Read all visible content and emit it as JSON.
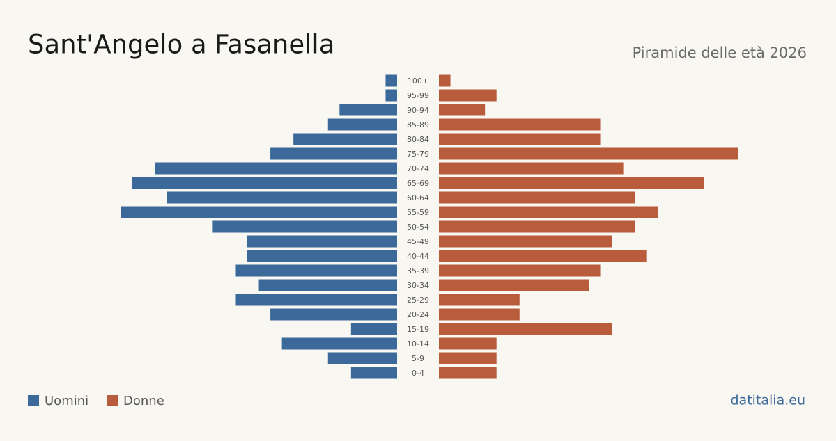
{
  "chart_data": {
    "type": "pyramid",
    "title": "Sant'Angelo a Fasanella",
    "subtitle": "Piramide delle età 2026",
    "categories": [
      "100+",
      "95-99",
      "90-94",
      "85-89",
      "80-84",
      "75-79",
      "70-74",
      "65-69",
      "60-64",
      "55-59",
      "50-54",
      "45-49",
      "40-44",
      "35-39",
      "30-34",
      "25-29",
      "20-24",
      "15-19",
      "10-14",
      "5-9",
      "0-4"
    ],
    "series": [
      {
        "name": "Uomini",
        "color": "#3b6a9a",
        "values": [
          1,
          1,
          5,
          6,
          9,
          11,
          21,
          23,
          20,
          24,
          16,
          13,
          13,
          14,
          12,
          14,
          11,
          4,
          10,
          6,
          4
        ]
      },
      {
        "name": "Donne",
        "color": "#b85c3c",
        "values": [
          1,
          5,
          4,
          14,
          14,
          26,
          16,
          23,
          17,
          19,
          17,
          15,
          18,
          14,
          13,
          7,
          7,
          15,
          5,
          5,
          5
        ]
      }
    ]
  },
  "footer": {
    "site": "datitalia.eu"
  }
}
